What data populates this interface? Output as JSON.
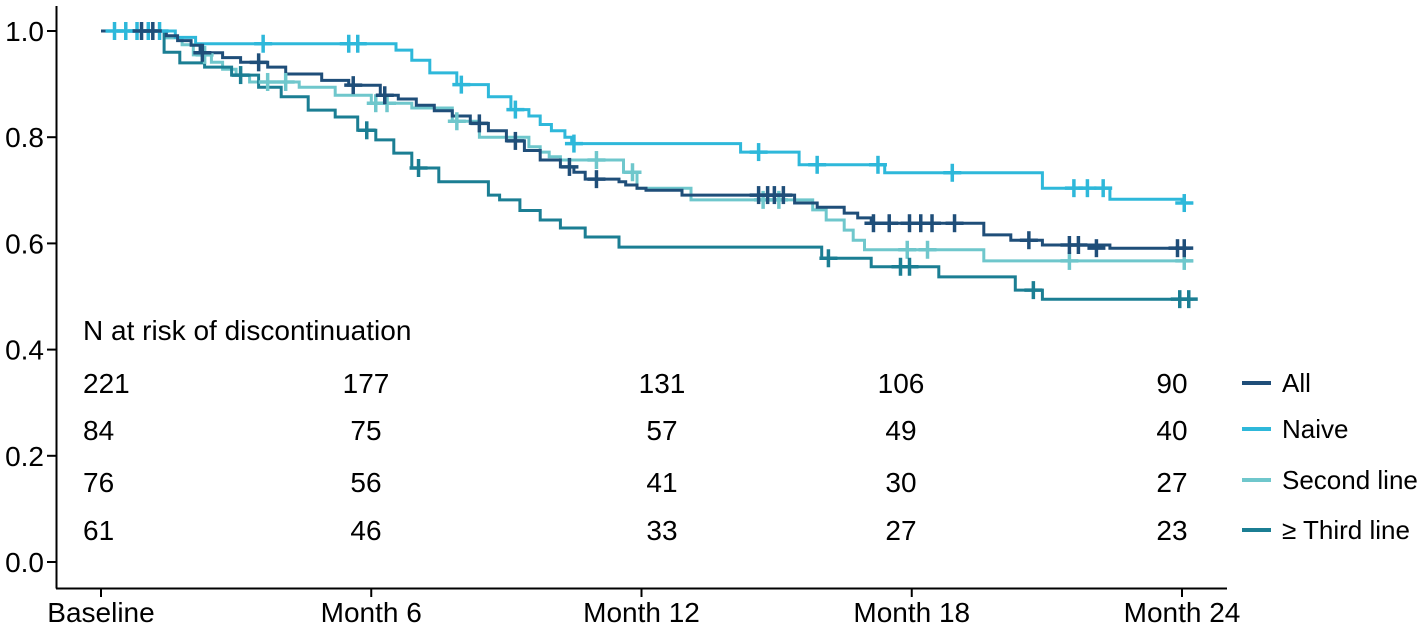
{
  "chart_data": {
    "type": "line",
    "subtype": "kaplan-meier-step-survival",
    "title": "",
    "xlabel": "",
    "ylabel": "",
    "xlim_months": [
      0,
      25
    ],
    "ylim": [
      0.0,
      1.05
    ],
    "grid": false,
    "legend_position": "right-middle",
    "x_ticks": [
      {
        "month": 0,
        "label": "Baseline"
      },
      {
        "month": 6,
        "label": "Month 6"
      },
      {
        "month": 12,
        "label": "Month 12"
      },
      {
        "month": 18,
        "label": "Month 18"
      },
      {
        "month": 24,
        "label": "Month 24"
      }
    ],
    "y_tick_values": [
      1.0,
      0.8,
      0.6,
      0.4,
      0.2,
      0.0
    ],
    "y_tick_labels": [
      "1.0",
      "0.8",
      "0.6",
      "0.4",
      "0.2",
      "0.0"
    ],
    "series": [
      {
        "name": "All",
        "color": "#1f4e79",
        "points": [
          [
            0,
            1.0
          ],
          [
            1.45,
            0.991
          ],
          [
            1.7,
            0.982
          ],
          [
            2.0,
            0.973
          ],
          [
            2.2,
            0.959
          ],
          [
            2.7,
            0.95
          ],
          [
            3.1,
            0.941
          ],
          [
            3.7,
            0.932
          ],
          [
            4.1,
            0.919
          ],
          [
            4.9,
            0.907
          ],
          [
            5.5,
            0.898
          ],
          [
            6.2,
            0.879
          ],
          [
            6.6,
            0.872
          ],
          [
            7.0,
            0.86
          ],
          [
            7.4,
            0.85
          ],
          [
            7.8,
            0.84
          ],
          [
            8.2,
            0.826
          ],
          [
            8.6,
            0.812
          ],
          [
            9.0,
            0.793
          ],
          [
            9.4,
            0.775
          ],
          [
            9.75,
            0.757
          ],
          [
            10.2,
            0.744
          ],
          [
            10.5,
            0.734
          ],
          [
            10.75,
            0.721
          ],
          [
            11.5,
            0.716
          ],
          [
            11.65,
            0.71
          ],
          [
            11.9,
            0.704
          ],
          [
            12.1,
            0.7
          ],
          [
            12.9,
            0.691
          ],
          [
            15.4,
            0.676
          ],
          [
            15.9,
            0.668
          ],
          [
            16.5,
            0.657
          ],
          [
            16.8,
            0.648
          ],
          [
            17.1,
            0.638
          ],
          [
            19.6,
            0.616
          ],
          [
            20.2,
            0.606
          ],
          [
            20.9,
            0.597
          ],
          [
            22.4,
            0.591
          ],
          [
            24.2,
            0.591
          ]
        ],
        "censors": [
          [
            0.9,
            1.0
          ],
          [
            1.15,
            1.0
          ],
          [
            2.25,
            0.959
          ],
          [
            3.5,
            0.941
          ],
          [
            5.6,
            0.898
          ],
          [
            6.3,
            0.879
          ],
          [
            8.4,
            0.826
          ],
          [
            9.2,
            0.793
          ],
          [
            10.4,
            0.744
          ],
          [
            11.0,
            0.721
          ],
          [
            14.6,
            0.691
          ],
          [
            14.8,
            0.691
          ],
          [
            14.95,
            0.691
          ],
          [
            15.15,
            0.691
          ],
          [
            17.15,
            0.638
          ],
          [
            17.5,
            0.638
          ],
          [
            17.95,
            0.638
          ],
          [
            18.2,
            0.638
          ],
          [
            18.45,
            0.638
          ],
          [
            18.95,
            0.638
          ],
          [
            20.6,
            0.606
          ],
          [
            21.5,
            0.597
          ],
          [
            21.7,
            0.597
          ],
          [
            22.1,
            0.591
          ],
          [
            23.9,
            0.591
          ],
          [
            24.05,
            0.591
          ]
        ]
      },
      {
        "name": "Naive",
        "color": "#2eb8da",
        "points": [
          [
            0,
            1.0
          ],
          [
            1.65,
            0.988
          ],
          [
            2.1,
            0.976
          ],
          [
            6.55,
            0.964
          ],
          [
            6.9,
            0.945
          ],
          [
            7.3,
            0.921
          ],
          [
            7.9,
            0.899
          ],
          [
            8.6,
            0.876
          ],
          [
            9.1,
            0.852
          ],
          [
            9.5,
            0.84
          ],
          [
            9.75,
            0.824
          ],
          [
            10.0,
            0.812
          ],
          [
            10.3,
            0.8
          ],
          [
            10.45,
            0.788
          ],
          [
            14.2,
            0.772
          ],
          [
            15.5,
            0.748
          ],
          [
            17.4,
            0.733
          ],
          [
            20.9,
            0.704
          ],
          [
            22.4,
            0.683
          ],
          [
            24.0,
            0.676
          ],
          [
            24.25,
            0.676
          ]
        ],
        "censors": [
          [
            0.3,
            1.0
          ],
          [
            0.55,
            1.0
          ],
          [
            0.8,
            1.0
          ],
          [
            1.05,
            1.0
          ],
          [
            1.3,
            1.0
          ],
          [
            3.6,
            0.976
          ],
          [
            5.5,
            0.976
          ],
          [
            5.7,
            0.976
          ],
          [
            8.0,
            0.899
          ],
          [
            9.2,
            0.852
          ],
          [
            10.5,
            0.788
          ],
          [
            14.6,
            0.772
          ],
          [
            15.9,
            0.748
          ],
          [
            17.25,
            0.748
          ],
          [
            18.9,
            0.733
          ],
          [
            21.6,
            0.704
          ],
          [
            21.9,
            0.704
          ],
          [
            22.25,
            0.704
          ],
          [
            24.05,
            0.676
          ]
        ]
      },
      {
        "name": "Second line",
        "color": "#6fc7cc",
        "points": [
          [
            0,
            1.0
          ],
          [
            1.45,
            0.987
          ],
          [
            1.8,
            0.974
          ],
          [
            2.05,
            0.955
          ],
          [
            2.45,
            0.941
          ],
          [
            2.7,
            0.928
          ],
          [
            3.0,
            0.917
          ],
          [
            3.3,
            0.904
          ],
          [
            4.4,
            0.894
          ],
          [
            5.2,
            0.879
          ],
          [
            6.0,
            0.864
          ],
          [
            6.9,
            0.855
          ],
          [
            7.8,
            0.83
          ],
          [
            8.4,
            0.8
          ],
          [
            9.5,
            0.782
          ],
          [
            9.75,
            0.772
          ],
          [
            9.95,
            0.763
          ],
          [
            10.2,
            0.757
          ],
          [
            11.6,
            0.734
          ],
          [
            11.9,
            0.704
          ],
          [
            13.1,
            0.682
          ],
          [
            15.8,
            0.663
          ],
          [
            16.1,
            0.644
          ],
          [
            16.5,
            0.625
          ],
          [
            16.7,
            0.606
          ],
          [
            16.95,
            0.588
          ],
          [
            19.6,
            0.567
          ],
          [
            24.25,
            0.567
          ]
        ],
        "censors": [
          [
            2.3,
            0.955
          ],
          [
            3.7,
            0.904
          ],
          [
            4.1,
            0.904
          ],
          [
            6.1,
            0.864
          ],
          [
            6.35,
            0.864
          ],
          [
            7.9,
            0.83
          ],
          [
            11.0,
            0.757
          ],
          [
            11.8,
            0.734
          ],
          [
            14.7,
            0.682
          ],
          [
            15.05,
            0.682
          ],
          [
            17.9,
            0.588
          ],
          [
            18.35,
            0.588
          ],
          [
            21.5,
            0.567
          ],
          [
            24.05,
            0.567
          ]
        ]
      },
      {
        "name": "≥ Third line",
        "color": "#1b7e93",
        "points": [
          [
            0,
            1.0
          ],
          [
            1.4,
            0.96
          ],
          [
            1.75,
            0.94
          ],
          [
            2.3,
            0.932
          ],
          [
            2.9,
            0.917
          ],
          [
            3.5,
            0.894
          ],
          [
            4.0,
            0.876
          ],
          [
            4.6,
            0.851
          ],
          [
            5.2,
            0.838
          ],
          [
            5.7,
            0.813
          ],
          [
            6.1,
            0.795
          ],
          [
            6.5,
            0.77
          ],
          [
            6.9,
            0.742
          ],
          [
            7.5,
            0.716
          ],
          [
            8.6,
            0.691
          ],
          [
            8.85,
            0.682
          ],
          [
            9.3,
            0.662
          ],
          [
            9.75,
            0.644
          ],
          [
            10.2,
            0.629
          ],
          [
            10.75,
            0.612
          ],
          [
            11.5,
            0.593
          ],
          [
            16.0,
            0.572
          ],
          [
            17.1,
            0.556
          ],
          [
            18.6,
            0.537
          ],
          [
            20.3,
            0.512
          ],
          [
            20.9,
            0.495
          ],
          [
            24.25,
            0.495
          ]
        ],
        "censors": [
          [
            3.1,
            0.917
          ],
          [
            5.9,
            0.813
          ],
          [
            7.05,
            0.742
          ],
          [
            16.15,
            0.572
          ],
          [
            17.75,
            0.556
          ],
          [
            17.95,
            0.556
          ],
          [
            20.7,
            0.512
          ],
          [
            23.95,
            0.495
          ],
          [
            24.15,
            0.495
          ]
        ]
      }
    ],
    "risk_table": {
      "title": "N at risk of discontinuation",
      "columns_months": [
        0,
        6,
        12,
        18,
        24
      ],
      "rows": [
        {
          "series": "All",
          "values": [
            221,
            177,
            131,
            106,
            90
          ]
        },
        {
          "series": "Naive",
          "values": [
            84,
            75,
            57,
            49,
            40
          ]
        },
        {
          "series": "Second line",
          "values": [
            76,
            56,
            41,
            30,
            27
          ]
        },
        {
          "series": "≥ Third line",
          "values": [
            61,
            46,
            33,
            27,
            23
          ]
        }
      ]
    },
    "legend": [
      "All",
      "Naive",
      "Second line",
      "≥ Third line"
    ]
  }
}
